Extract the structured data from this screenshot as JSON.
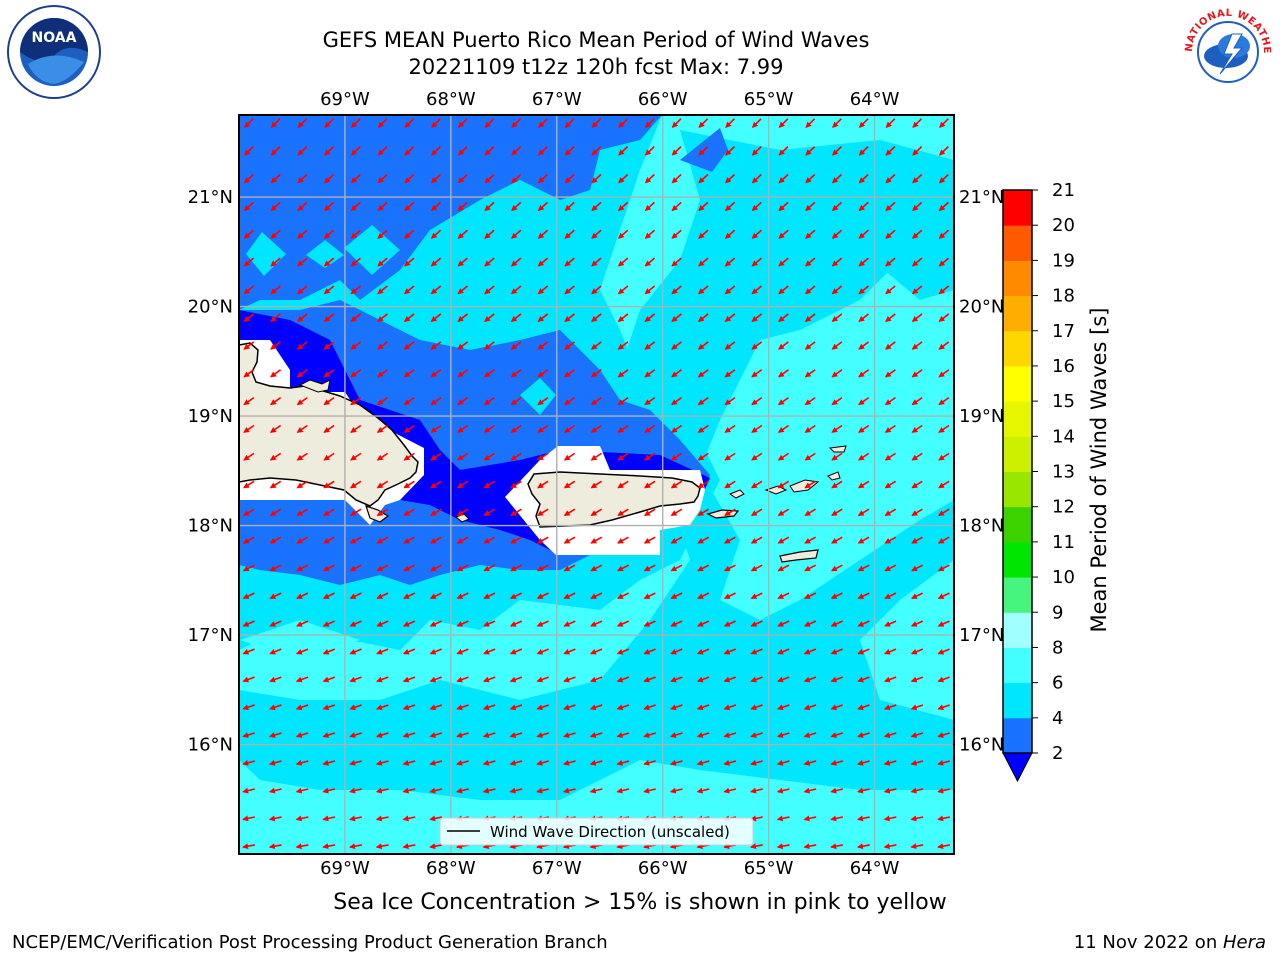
{
  "title": {
    "line1": "GEFS MEAN Puerto Rico Mean Period of Wind Waves",
    "line2": "20221109 t12z 120h fcst   Max: 7.99"
  },
  "map": {
    "lon_range": [
      -70,
      -63.25
    ],
    "lat_range": [
      15.0,
      21.75
    ],
    "lon_ticks": [
      "69°W",
      "68°W",
      "67°W",
      "66°W",
      "65°W",
      "64°W"
    ],
    "lat_ticks": [
      "21°N",
      "20°N",
      "19°N",
      "18°N",
      "17°N",
      "16°N"
    ],
    "gridlines": true,
    "legend": "Wind Wave Direction (unscaled)",
    "land_color": "#eeecdd",
    "coast_color": "#000000",
    "arrow_color": "#ff0000"
  },
  "colorbar": {
    "label": "Mean Period of Wind Waves [s]",
    "extend_min_color": "#0000ff",
    "ticks": [
      "2",
      "4",
      "6",
      "8",
      "9",
      "10",
      "11",
      "12",
      "13",
      "14",
      "15",
      "16",
      "17",
      "18",
      "19",
      "20",
      "21"
    ],
    "colors": [
      "#1a73ff",
      "#00e6ff",
      "#44ffff",
      "#a0ffff",
      "#47f47d",
      "#00e600",
      "#3cd200",
      "#99e600",
      "#ccf000",
      "#e6f500",
      "#ffff00",
      "#ffd700",
      "#ffad00",
      "#ff8a00",
      "#ff5a00",
      "#ff3000",
      "#ff0000"
    ]
  },
  "footer": {
    "note": "Sea Ice Concentration > 15% is shown in pink to yellow",
    "left": "NCEP/EMC/Verification Post Processing Product Generation Branch",
    "right_prefix": "11 Nov 2022 on ",
    "right_host": "Hera"
  },
  "logos": {
    "noaa_text": "NOAA",
    "nws_text": "NATIONAL WEATHER SERVICE"
  }
}
